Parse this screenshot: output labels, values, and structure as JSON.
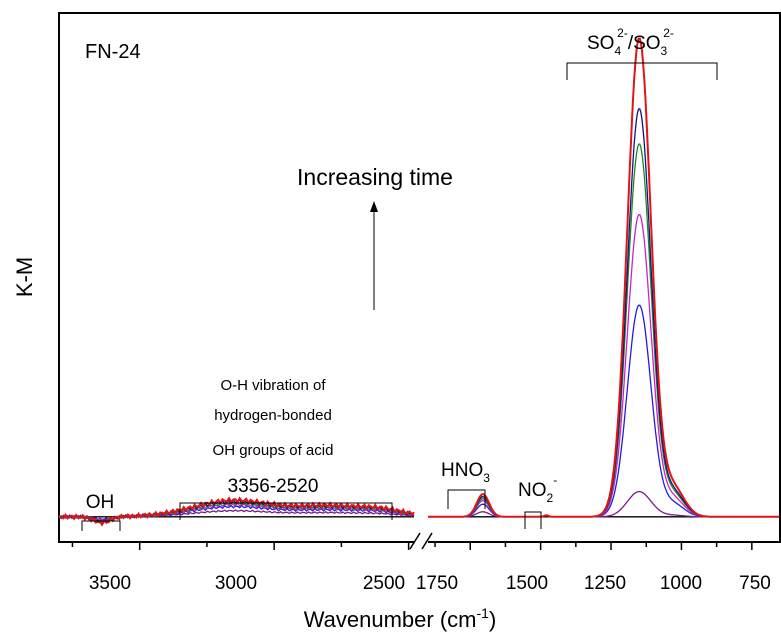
{
  "chart_data": {
    "type": "line",
    "title": "",
    "sample_label": "FN-24",
    "xlabel": "Wavenumber (cm",
    "xlabel_sup": "-1",
    "xlabel_end": ")",
    "ylabel": "K-M",
    "broken_x_axis": true,
    "x_reversed": true,
    "segment_left": {
      "xlim": [
        3800,
        2480
      ],
      "ticks": [
        "3500",
        "3000",
        "2500"
      ],
      "tick_values": [
        3500,
        3000,
        2500
      ]
    },
    "segment_right": {
      "xlim": [
        1900,
        650
      ],
      "ticks": [
        "1750",
        "1500",
        "1250",
        "1000",
        "750"
      ],
      "tick_values": [
        1750,
        1500,
        1250,
        1000,
        750
      ]
    },
    "ylim": [
      -0.05,
      1.0
    ],
    "annotations": {
      "increasing_time": "Increasing time",
      "oh_label": "OH",
      "oh_vib_line1": "O-H vibration of",
      "oh_vib_line2": "hydrogen-bonded",
      "oh_vib_line3": "OH groups of acid",
      "oh_vib_range": "3356-2520",
      "hno3_main": "HNO",
      "hno3_sub": "3",
      "no2_main": "NO",
      "no2_sub": "2",
      "no2_sup": "-",
      "so_main1": "SO",
      "so_sub1": "4",
      "so_sup1": "2-",
      "so_slash": "/SO",
      "so_sub2": "3",
      "so_sup2": "2-"
    },
    "series": [
      {
        "color": "#000000",
        "so4_peak": 0.0,
        "hno3_peak": 0.0,
        "oh_band": 0.0
      },
      {
        "color": "#7b1a8a",
        "so4_peak": 0.05,
        "hno3_peak": 0.01,
        "oh_band": 0.012
      },
      {
        "color": "#1f1fe0",
        "so4_peak": 0.42,
        "hno3_peak": 0.025,
        "oh_band": 0.02
      },
      {
        "color": "#cc22cc",
        "so4_peak": 0.6,
        "hno3_peak": 0.032,
        "oh_band": 0.024
      },
      {
        "color": "#1a8a2a",
        "so4_peak": 0.74,
        "hno3_peak": 0.036,
        "oh_band": 0.027
      },
      {
        "color": "#141480",
        "so4_peak": 0.81,
        "hno3_peak": 0.04,
        "oh_band": 0.03
      },
      {
        "color": "#e01414",
        "so4_peak": 0.95,
        "hno3_peak": 0.045,
        "oh_band": 0.033
      }
    ]
  }
}
